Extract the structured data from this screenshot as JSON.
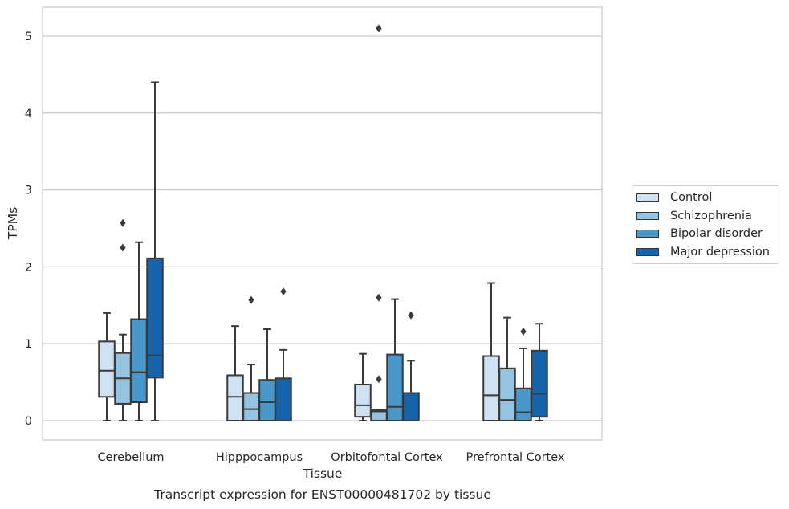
{
  "chart_data": {
    "type": "box",
    "title": "Transcript expression for ENST00000481702 by tissue",
    "xlabel": "Tissue",
    "ylabel": "TPMs",
    "ylim": [
      -0.25,
      5.38
    ],
    "yticks": [
      0,
      1,
      2,
      3,
      4,
      5
    ],
    "grid": "horizontal",
    "legend_position": "right",
    "categories": [
      "Cerebellum",
      "Hipppocampus",
      "Orbitofontal Cortex",
      "Prefrontal Cortex"
    ],
    "series": [
      {
        "name": "Control",
        "color": "#d0e1f2",
        "boxes": [
          {
            "whislo": 0.0,
            "q1": 0.31,
            "med": 0.65,
            "q3": 1.03,
            "whishi": 1.4,
            "fliers": []
          },
          {
            "whislo": 0.0,
            "q1": 0.0,
            "med": 0.31,
            "q3": 0.59,
            "whishi": 1.23,
            "fliers": []
          },
          {
            "whislo": 0.0,
            "q1": 0.05,
            "med": 0.2,
            "q3": 0.47,
            "whishi": 0.87,
            "fliers": []
          },
          {
            "whislo": 0.0,
            "q1": 0.0,
            "med": 0.33,
            "q3": 0.84,
            "whishi": 1.79,
            "fliers": []
          }
        ]
      },
      {
        "name": "Schizophrenia",
        "color": "#94c4df",
        "boxes": [
          {
            "whislo": 0.0,
            "q1": 0.22,
            "med": 0.55,
            "q3": 0.88,
            "whishi": 1.12,
            "fliers": [
              2.25,
              2.57
            ]
          },
          {
            "whislo": 0.0,
            "q1": 0.0,
            "med": 0.15,
            "q3": 0.36,
            "whishi": 0.73,
            "fliers": [
              1.57
            ]
          },
          {
            "whislo": 0.0,
            "q1": 0.0,
            "med": 0.12,
            "q3": 0.14,
            "whishi": 0.14,
            "fliers": [
              0.54,
              1.6,
              5.1
            ]
          },
          {
            "whislo": 0.0,
            "q1": 0.0,
            "med": 0.27,
            "q3": 0.68,
            "whishi": 1.34,
            "fliers": []
          }
        ]
      },
      {
        "name": "Bipolar disorder",
        "color": "#4a98c9",
        "boxes": [
          {
            "whislo": 0.0,
            "q1": 0.24,
            "med": 0.63,
            "q3": 1.32,
            "whishi": 2.32,
            "fliers": []
          },
          {
            "whislo": 0.0,
            "q1": 0.0,
            "med": 0.24,
            "q3": 0.53,
            "whishi": 1.19,
            "fliers": []
          },
          {
            "whislo": 0.0,
            "q1": 0.0,
            "med": 0.18,
            "q3": 0.86,
            "whishi": 1.58,
            "fliers": []
          },
          {
            "whislo": 0.0,
            "q1": 0.0,
            "med": 0.11,
            "q3": 0.42,
            "whishi": 0.94,
            "fliers": [
              1.16
            ]
          }
        ]
      },
      {
        "name": "Major depression",
        "color": "#1764ab",
        "boxes": [
          {
            "whislo": 0.0,
            "q1": 0.56,
            "med": 0.85,
            "q3": 2.11,
            "whishi": 4.4,
            "fliers": []
          },
          {
            "whislo": 0.0,
            "q1": 0.0,
            "med": 0.0,
            "q3": 0.55,
            "whishi": 0.92,
            "fliers": [
              1.68
            ]
          },
          {
            "whislo": 0.0,
            "q1": 0.0,
            "med": 0.0,
            "q3": 0.36,
            "whishi": 0.78,
            "fliers": [
              1.37
            ]
          },
          {
            "whislo": 0.0,
            "q1": 0.05,
            "med": 0.35,
            "q3": 0.91,
            "whishi": 1.26,
            "fliers": []
          }
        ]
      }
    ]
  }
}
